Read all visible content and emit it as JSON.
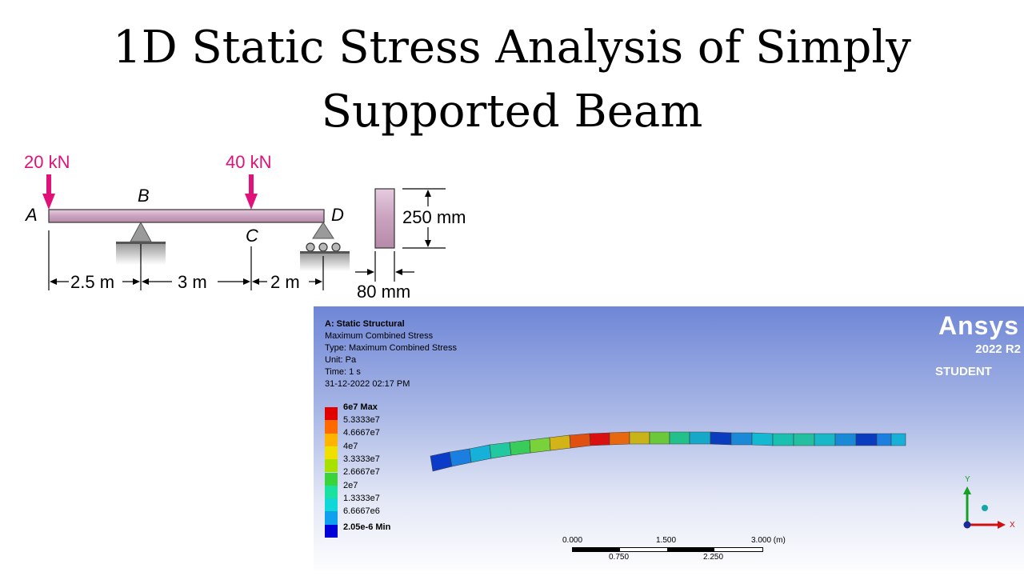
{
  "title": {
    "line1": "1D Static Stress Analysis of Simply",
    "line2": "Supported Beam"
  },
  "diagram": {
    "loads": [
      "20 kN",
      "40 kN"
    ],
    "points": {
      "a": "A",
      "b": "B",
      "c": "C",
      "d": "D"
    },
    "spans": [
      "2.5 m",
      "3 m",
      "2 m"
    ],
    "section_height": "250 mm",
    "section_width": "80 mm",
    "load_color": "#e0127a"
  },
  "ansys": {
    "info": {
      "analysis": "A: Static Structural",
      "result": "Maximum Combined Stress",
      "type": "Type: Maximum Combined Stress",
      "unit": "Unit: Pa",
      "time": "Time: 1 s",
      "date": "31-12-2022 02:17 PM"
    },
    "legend": {
      "labels": [
        "6e7 Max",
        "5.3333e7",
        "4.6667e7",
        "4e7",
        "3.3333e7",
        "2.6667e7",
        "2e7",
        "1.3333e7",
        "6.6667e6",
        "2.05e-6 Min"
      ],
      "colors": [
        "#e00000",
        "#ff6a00",
        "#ffb400",
        "#f0e000",
        "#a8e000",
        "#3ad43a",
        "#1ae0a0",
        "#10d8d8",
        "#10a0f0",
        "#0000d8"
      ]
    },
    "brand": {
      "name": "Ansys",
      "version": "2022 R2",
      "edition": "STUDENT"
    },
    "scale": {
      "top": [
        "0.000",
        "1.500",
        "3.000 (m)"
      ],
      "bottom": [
        "0.750",
        "2.250"
      ]
    },
    "triad": {
      "x": "X",
      "y": "Y"
    }
  }
}
